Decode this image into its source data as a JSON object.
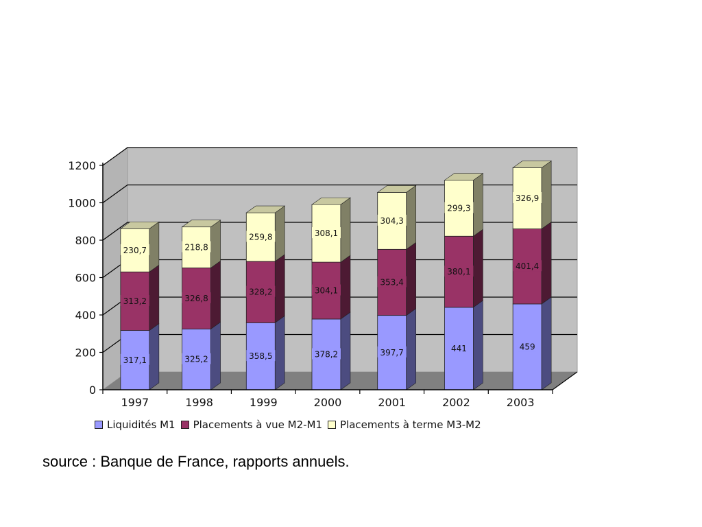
{
  "chart_data": {
    "type": "bar",
    "stacked": true,
    "style": "3d",
    "categories": [
      "1997",
      "1998",
      "1999",
      "2000",
      "2001",
      "2002",
      "2003"
    ],
    "series": [
      {
        "name": "Liquidités M1",
        "color": "#9999ff",
        "side": "#4c4c80",
        "top": "#7070c0",
        "values": [
          317.1,
          325.2,
          358.5,
          378.2,
          397.7,
          441,
          459
        ],
        "labels": [
          "317,1",
          "325,2",
          "358,5",
          "378,2",
          "397,7",
          "441",
          "459"
        ]
      },
      {
        "name": "Placements à vue M2-M1",
        "color": "#993366",
        "side": "#4d1a33",
        "top": "#7a2950",
        "values": [
          313.2,
          326.8,
          328.2,
          304.1,
          353.4,
          380.1,
          401.4
        ],
        "labels": [
          "313,2",
          "326,8",
          "328,2",
          "304,1",
          "353,4",
          "380,1",
          "401,4"
        ]
      },
      {
        "name": "Placements à terme M3-M2",
        "color": "#ffffcc",
        "side": "#808066",
        "top": "#c8c8a0",
        "values": [
          230.7,
          218.8,
          259.8,
          308.1,
          304.3,
          299.3,
          326.9
        ],
        "labels": [
          "230,7",
          "218,8",
          "259,8",
          "308,1",
          "304,3",
          "299,3",
          "326,9"
        ]
      }
    ],
    "y_ticks": [
      "0",
      "200",
      "400",
      "600",
      "800",
      "1000",
      "1200"
    ],
    "ylim": [
      0,
      1200
    ],
    "grid": true,
    "legend_position": "bottom",
    "wall_color": "#c0c0c0",
    "floor_color": "#808080"
  },
  "source_text": "source : Banque de France, rapports annuels."
}
